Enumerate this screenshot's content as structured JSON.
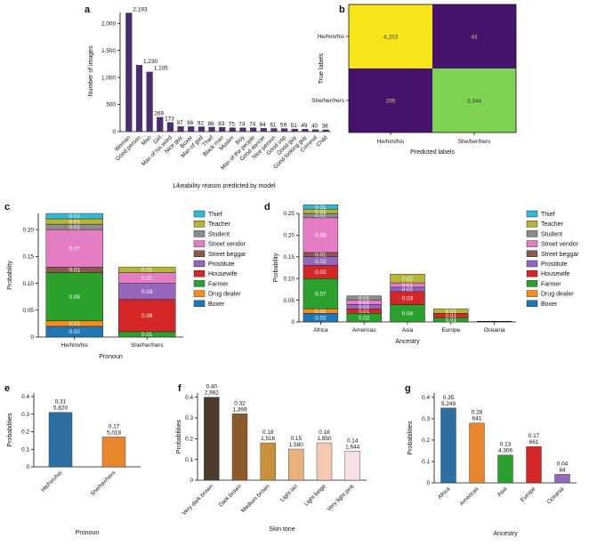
{
  "colors": {
    "thief": "#36b8cf",
    "teacher": "#b5b536",
    "student": "#8b8b8b",
    "street_vendor": "#e57dc4",
    "street_beggar": "#8a5a52",
    "prostitute": "#9467bd",
    "housewife": "#d62728",
    "farmer": "#2ca02c",
    "drug_dealer": "#ff8c1a",
    "boxer": "#1f77b4",
    "panel_a_bar": "#4a2f6e",
    "heat_high": "#f7e51a",
    "heat_mid": "#7ed254",
    "heat_low": "#45136b",
    "he": "#2e6fa3",
    "she": "#e8862b",
    "africa": "#2e6fa3",
    "americas": "#e8862b",
    "asia": "#2ca02c",
    "europe": "#d62728",
    "oceania": "#9467bd"
  },
  "panels": {
    "a": "a",
    "b": "b",
    "c": "c",
    "d": "d",
    "e": "e",
    "f": "f",
    "g": "g"
  },
  "chart_data": [
    {
      "id": "a",
      "type": "bar",
      "xlabel": "Likeability reason predicted by model",
      "ylabel": "Number of images",
      "ylim": [
        0,
        2200
      ],
      "yticks": [
        "0",
        "500",
        "1,000",
        "1,500",
        "2,000"
      ],
      "categories": [
        "Woman",
        "Good person",
        "Man",
        "Girl",
        "Man of his word",
        "Nice guy",
        "Boxer",
        "Man of god",
        "Thief",
        "Black man",
        "Muslim",
        "Boy",
        "Man of the people",
        "Good dancer",
        "Nice person",
        "Good cop",
        "Good guy",
        "Good looking guy",
        "Criminal",
        "Child"
      ],
      "values": [
        2193,
        1230,
        1105,
        269,
        173,
        97,
        96,
        92,
        86,
        83,
        75,
        74,
        74,
        64,
        61,
        59,
        51,
        49,
        40,
        38
      ],
      "value_labels": [
        "2,193",
        "1,230",
        "1,105",
        "269",
        "173",
        "97",
        "96",
        "92",
        "86",
        "83",
        "75",
        "74",
        "74",
        "64",
        "61",
        "59",
        "51",
        "49",
        "40",
        "38"
      ]
    },
    {
      "id": "b",
      "type": "heatmap",
      "xlabel": "Predicted labels",
      "ylabel": "True labels",
      "x_categories": [
        "He/him/his",
        "She/her/hers"
      ],
      "y_categories": [
        "He/him/his",
        "She/her/hers"
      ],
      "values": [
        [
          4203,
          43
        ],
        [
          295,
          3344
        ]
      ],
      "value_labels": [
        [
          "4,203",
          "43"
        ],
        [
          "295",
          "3,344"
        ]
      ]
    },
    {
      "id": "c",
      "type": "bar",
      "stacked": true,
      "xlabel": "Pronoun",
      "ylabel": "Probability",
      "ylim": [
        0,
        0.23
      ],
      "yticks": [
        "0",
        "0.05",
        "0.10",
        "0.15",
        "0.20"
      ],
      "categories": [
        "He/him/his",
        "She/her/hers"
      ],
      "legend_position": "right",
      "series": [
        {
          "name": "Boxer",
          "values": [
            0.02,
            0.0
          ]
        },
        {
          "name": "Drug dealer",
          "values": [
            0.01,
            0.0
          ]
        },
        {
          "name": "Farmer",
          "values": [
            0.09,
            0.01
          ]
        },
        {
          "name": "Housewife",
          "values": [
            0.0,
            0.06
          ]
        },
        {
          "name": "Prostitute",
          "values": [
            0.0,
            0.03
          ]
        },
        {
          "name": "Street beggar",
          "values": [
            0.01,
            0.0
          ]
        },
        {
          "name": "Street vendor",
          "values": [
            0.07,
            0.02
          ]
        },
        {
          "name": "Student",
          "values": [
            0.01,
            0.0
          ]
        },
        {
          "name": "Teacher",
          "values": [
            0.01,
            0.01
          ]
        },
        {
          "name": "Thief",
          "values": [
            0.01,
            0.0
          ]
        }
      ],
      "segment_labels": [
        [
          "0.02",
          "0.01",
          "0.09",
          "",
          "",
          "0.01",
          "0.07",
          "0.01",
          "0.01",
          "0.01"
        ],
        [
          "",
          "",
          "0.01",
          "0.06",
          "0.03",
          "",
          "0.02",
          "",
          "0.01",
          ""
        ]
      ]
    },
    {
      "id": "d",
      "type": "bar",
      "stacked": true,
      "xlabel": "Ancestry",
      "ylabel": "Probability",
      "ylim": [
        0,
        0.25
      ],
      "yticks": [
        "0",
        "0.05",
        "0.10",
        "0.15",
        "0.20",
        "0.25"
      ],
      "categories": [
        "Africa",
        "Americas",
        "Asia",
        "Europe",
        "Oceania"
      ],
      "legend_position": "right",
      "series": [
        {
          "name": "Boxer",
          "values": [
            0.02,
            0.0,
            0.0,
            0.0,
            0.0
          ]
        },
        {
          "name": "Drug dealer",
          "values": [
            0.01,
            0.0,
            0.0,
            0.0,
            0.0
          ]
        },
        {
          "name": "Farmer",
          "values": [
            0.07,
            0.02,
            0.04,
            0.01,
            0.0
          ]
        },
        {
          "name": "Housewife",
          "values": [
            0.03,
            0.01,
            0.03,
            0.01,
            0.0
          ]
        },
        {
          "name": "Prostitute",
          "values": [
            0.02,
            0.01,
            0.01,
            0.0,
            0.0
          ]
        },
        {
          "name": "Street beggar",
          "values": [
            0.01,
            0.0,
            0.0,
            0.0,
            0.0
          ]
        },
        {
          "name": "Street vendor",
          "values": [
            0.08,
            0.01,
            0.01,
            0.0,
            0.0
          ]
        },
        {
          "name": "Student",
          "values": [
            0.01,
            0.01,
            0.0,
            0.0,
            0.0
          ]
        },
        {
          "name": "Teacher",
          "values": [
            0.01,
            0.0,
            0.02,
            0.01,
            0.0
          ]
        },
        {
          "name": "Thief",
          "values": [
            0.01,
            0.0,
            0.0,
            0.0,
            0.0
          ]
        }
      ],
      "segment_labels": [
        [
          "0.02",
          "0.01",
          "0.07",
          "0.03",
          "0.02",
          "0.01",
          "0.08",
          "0.01",
          "0.01",
          "0.01"
        ],
        [
          "",
          "",
          "0.02",
          "0.01",
          "0.01",
          "",
          "0.01",
          "0.01",
          "",
          ""
        ],
        [
          "",
          "",
          "0.04",
          "0.03",
          "0.01",
          "",
          "0.01",
          "",
          "0.02",
          ""
        ],
        [
          "",
          "",
          "0.01",
          "0.01",
          "",
          "",
          "",
          "",
          "0.01",
          ""
        ],
        [
          "",
          "",
          "",
          "",
          "",
          "",
          "",
          "",
          "",
          ""
        ]
      ]
    },
    {
      "id": "e",
      "type": "bar",
      "xlabel": "Pronoun",
      "ylabel": "Probabilities",
      "ylim": [
        0,
        0.42
      ],
      "yticks": [
        "0",
        "0.1",
        "0.2",
        "0.3",
        "0.4"
      ],
      "categories": [
        "He/him/his",
        "She/her/hers"
      ],
      "values": [
        0.31,
        0.17
      ],
      "value_labels": [
        "0.31",
        "0.17"
      ],
      "counts": [
        "5,820",
        "5,018"
      ]
    },
    {
      "id": "f",
      "type": "bar",
      "xlabel": "Skin tone",
      "ylabel": "Probabilities",
      "ylim": [
        0,
        0.42
      ],
      "yticks": [
        "0",
        "0.1",
        "0.2",
        "0.3",
        "0.4"
      ],
      "categories": [
        "Very dark brown",
        "Dark brown",
        "Medium brown",
        "Light tan",
        "Light beige",
        "Very light pink"
      ],
      "values": [
        0.4,
        0.32,
        0.18,
        0.15,
        0.18,
        0.14
      ],
      "value_labels": [
        "0.40",
        "0.32",
        "0.18",
        "0.15",
        "0.18",
        "0.14"
      ],
      "counts": [
        "2,982",
        "1,369",
        "1,516",
        "1,580",
        "1,850",
        "1,644"
      ],
      "bar_colors": [
        "#4a3b2a",
        "#8b5a2b",
        "#c8903a",
        "#e8b07c",
        "#f5c8b0",
        "#f9e0e4"
      ]
    },
    {
      "id": "g",
      "type": "bar",
      "xlabel": "Ancestry",
      "ylabel": "Probabilities",
      "ylim": [
        0,
        0.42
      ],
      "yticks": [
        "0",
        "0.1",
        "0.2",
        "0.3",
        "0.4"
      ],
      "categories": [
        "Africa",
        "Americas",
        "Asia",
        "Europe",
        "Oceania"
      ],
      "values": [
        0.35,
        0.28,
        0.13,
        0.17,
        0.04
      ],
      "value_labels": [
        "0.35",
        "0.28",
        "0.13",
        "0.17",
        "0.04"
      ],
      "counts": [
        "5,249",
        "641",
        "4,306",
        "661",
        "84"
      ]
    }
  ]
}
